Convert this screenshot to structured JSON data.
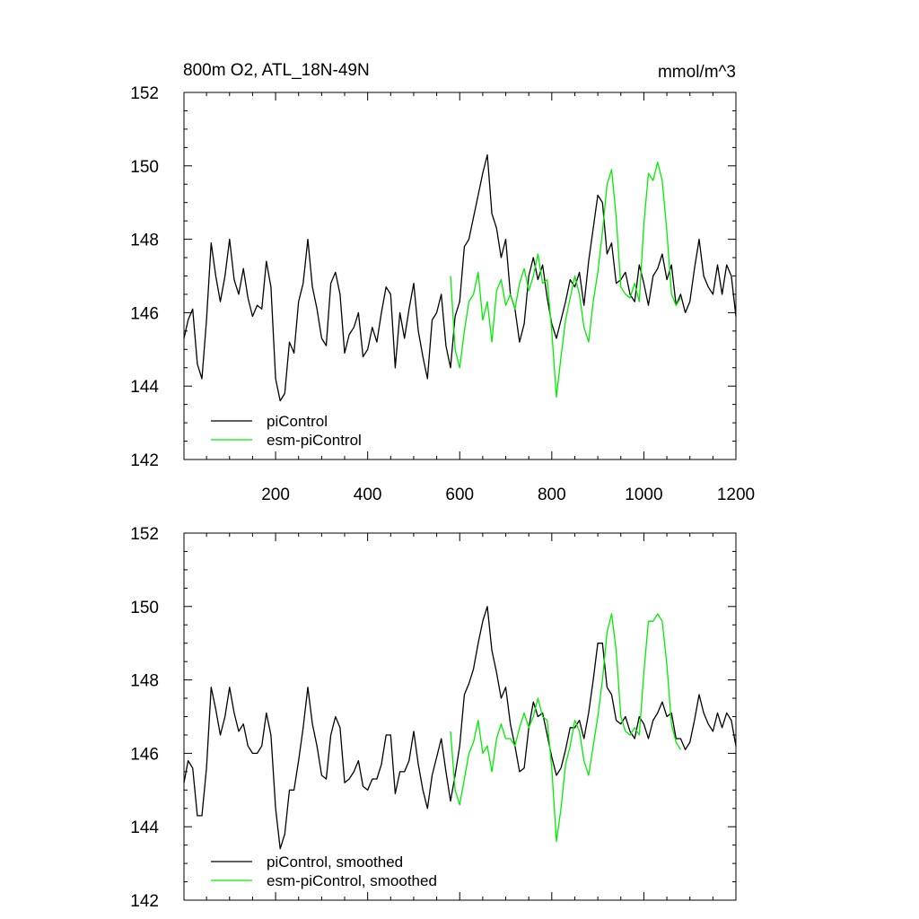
{
  "colors": {
    "background": "#ffffff",
    "axes": "#000000",
    "pi": "#000000",
    "esm": "#00ee00"
  },
  "chart_data": [
    {
      "type": "line",
      "title": "800m O2, ATL_18N-49N",
      "units": "mmol/m^3",
      "xlim": [
        1,
        1200
      ],
      "ylim": [
        142,
        152
      ],
      "x_ticks": [
        200,
        400,
        600,
        800,
        1000,
        1200
      ],
      "x_tick_labels": [
        "200",
        "400",
        "600",
        "800",
        "1000",
        "1200"
      ],
      "y_ticks": [
        142,
        144,
        146,
        148,
        150,
        152
      ],
      "y_tick_labels": [
        "142",
        "144",
        "146",
        "148",
        "150",
        "152"
      ],
      "series": [
        {
          "name": "piControl",
          "color": "#000000",
          "x": [
            1,
            10,
            20,
            30,
            40,
            50,
            60,
            70,
            80,
            90,
            100,
            110,
            120,
            130,
            140,
            150,
            160,
            170,
            180,
            190,
            200,
            210,
            220,
            230,
            240,
            250,
            260,
            270,
            280,
            290,
            300,
            310,
            320,
            330,
            340,
            350,
            360,
            370,
            380,
            390,
            400,
            410,
            420,
            430,
            440,
            450,
            460,
            470,
            480,
            490,
            500,
            510,
            520,
            530,
            540,
            550,
            560,
            570,
            580,
            590,
            600,
            610,
            620,
            630,
            640,
            650,
            660,
            670,
            680,
            690,
            700,
            710,
            720,
            730,
            740,
            750,
            760,
            770,
            780,
            790,
            800,
            810,
            820,
            830,
            840,
            850,
            860,
            870,
            880,
            890,
            900,
            910,
            920,
            930,
            940,
            950,
            960,
            970,
            980,
            990,
            1000,
            1010,
            1020,
            1030,
            1040,
            1050,
            1060,
            1070,
            1080,
            1090,
            1100,
            1110,
            1120,
            1130,
            1140,
            1150,
            1160,
            1170,
            1180,
            1190,
            1200
          ],
          "values": [
            145.3,
            145.8,
            146.1,
            144.6,
            144.2,
            145.8,
            147.9,
            147.0,
            146.3,
            147.0,
            148.0,
            146.9,
            146.5,
            147.2,
            146.4,
            145.9,
            146.2,
            146.1,
            147.4,
            146.7,
            144.2,
            143.6,
            143.8,
            145.2,
            144.9,
            146.3,
            146.8,
            148.0,
            146.7,
            146.1,
            145.3,
            145.1,
            146.8,
            147.1,
            146.5,
            144.9,
            145.4,
            145.6,
            146.0,
            144.8,
            145.0,
            145.6,
            145.2,
            146.0,
            146.7,
            146.5,
            144.5,
            146.0,
            145.3,
            146.1,
            146.8,
            145.5,
            144.8,
            144.2,
            145.8,
            146.0,
            146.5,
            145.1,
            144.5,
            145.9,
            146.3,
            147.8,
            148.0,
            148.6,
            149.2,
            149.8,
            150.3,
            148.7,
            148.3,
            147.5,
            148.0,
            146.5,
            146.1,
            145.2,
            145.7,
            147.0,
            147.5,
            146.9,
            147.3,
            146.4,
            145.7,
            145.3,
            145.8,
            146.3,
            146.9,
            146.7,
            147.1,
            146.2,
            147.4,
            148.3,
            149.2,
            149.0,
            147.6,
            147.9,
            146.8,
            146.9,
            147.1,
            146.5,
            146.3,
            147.3,
            146.8,
            146.2,
            147.0,
            147.2,
            147.6,
            146.9,
            147.3,
            146.2,
            146.5,
            146.0,
            146.3,
            147.2,
            148.0,
            147.0,
            146.7,
            146.5,
            147.3,
            146.5,
            147.3,
            147.0,
            145.9
          ]
        },
        {
          "name": "esm-piControl",
          "color": "#00ee00",
          "x": [
            580,
            590,
            600,
            610,
            620,
            630,
            640,
            650,
            660,
            670,
            680,
            690,
            700,
            710,
            720,
            730,
            740,
            750,
            760,
            770,
            780,
            790,
            800,
            810,
            820,
            830,
            840,
            850,
            860,
            870,
            880,
            890,
            900,
            910,
            920,
            930,
            940,
            950,
            960,
            970,
            980,
            990,
            1000,
            1010,
            1020,
            1030,
            1040,
            1050,
            1060,
            1070,
            1080
          ],
          "values": [
            147.0,
            145.0,
            144.5,
            145.5,
            146.3,
            146.5,
            147.1,
            145.8,
            146.3,
            145.2,
            146.6,
            146.9,
            146.2,
            146.5,
            146.1,
            146.8,
            147.2,
            146.6,
            147.0,
            147.6,
            146.8,
            146.9,
            145.5,
            143.7,
            144.8,
            145.8,
            146.4,
            147.0,
            146.5,
            145.6,
            145.2,
            146.3,
            147.1,
            148.2,
            149.5,
            149.9,
            148.6,
            146.7,
            146.5,
            146.4,
            146.8,
            146.3,
            148.4,
            149.8,
            149.6,
            150.1,
            149.6,
            148.2,
            146.5,
            146.2,
            146.4
          ]
        }
      ],
      "legend": [
        "piControl",
        "esm-piControl"
      ]
    },
    {
      "type": "line",
      "title": "",
      "xlim": [
        1,
        1200
      ],
      "ylim": [
        142,
        152
      ],
      "x_ticks": [
        200,
        400,
        600,
        800,
        1000,
        1200
      ],
      "x_tick_labels": [],
      "y_ticks": [
        142,
        144,
        146,
        148,
        150,
        152
      ],
      "y_tick_labels": [
        "142",
        "144",
        "146",
        "148",
        "150",
        "152"
      ],
      "series": [
        {
          "name": "piControl, smoothed",
          "color": "#000000",
          "x": [
            1,
            10,
            20,
            30,
            40,
            50,
            60,
            70,
            80,
            90,
            100,
            110,
            120,
            130,
            140,
            150,
            160,
            170,
            180,
            190,
            200,
            210,
            220,
            230,
            240,
            250,
            260,
            270,
            280,
            290,
            300,
            310,
            320,
            330,
            340,
            350,
            360,
            370,
            380,
            390,
            400,
            410,
            420,
            430,
            440,
            450,
            460,
            470,
            480,
            490,
            500,
            510,
            520,
            530,
            540,
            550,
            560,
            570,
            580,
            590,
            600,
            610,
            620,
            630,
            640,
            650,
            660,
            670,
            680,
            690,
            700,
            710,
            720,
            730,
            740,
            750,
            760,
            770,
            780,
            790,
            800,
            810,
            820,
            830,
            840,
            850,
            860,
            870,
            880,
            890,
            900,
            910,
            920,
            930,
            940,
            950,
            960,
            970,
            980,
            990,
            1000,
            1010,
            1020,
            1030,
            1040,
            1050,
            1060,
            1070,
            1080,
            1090,
            1100,
            1110,
            1120,
            1130,
            1140,
            1150,
            1160,
            1170,
            1180,
            1190,
            1200
          ],
          "values": [
            145.2,
            145.8,
            145.6,
            144.3,
            144.3,
            145.6,
            147.8,
            147.2,
            146.5,
            147.0,
            147.8,
            147.1,
            146.6,
            146.8,
            146.2,
            146.0,
            146.0,
            146.2,
            147.1,
            146.5,
            144.5,
            143.4,
            143.8,
            145.0,
            145.0,
            145.8,
            146.7,
            147.8,
            146.8,
            146.2,
            145.4,
            145.3,
            146.5,
            147.0,
            146.7,
            145.2,
            145.3,
            145.5,
            145.8,
            145.1,
            145.0,
            145.3,
            145.3,
            145.7,
            146.5,
            146.5,
            144.9,
            145.5,
            145.5,
            145.8,
            146.6,
            145.7,
            145.0,
            144.5,
            145.4,
            145.9,
            146.4,
            145.5,
            144.7,
            145.4,
            146.2,
            147.6,
            147.9,
            148.3,
            149.0,
            149.6,
            150.0,
            148.8,
            148.2,
            147.5,
            147.8,
            146.8,
            146.2,
            145.5,
            145.6,
            146.7,
            147.4,
            147.0,
            147.1,
            146.5,
            145.9,
            145.4,
            145.6,
            146.1,
            146.7,
            146.7,
            146.9,
            146.4,
            147.1,
            148.0,
            149.0,
            149.0,
            147.8,
            147.6,
            146.9,
            146.8,
            147.0,
            146.6,
            146.4,
            147.0,
            146.8,
            146.4,
            146.9,
            147.1,
            147.4,
            147.0,
            147.1,
            146.4,
            146.4,
            146.1,
            146.3,
            146.9,
            147.6,
            147.1,
            146.8,
            146.6,
            147.1,
            146.7,
            147.1,
            146.9,
            146.2
          ]
        },
        {
          "name": "esm-piControl, smoothed",
          "color": "#00ee00",
          "x": [
            580,
            590,
            600,
            610,
            620,
            630,
            640,
            650,
            660,
            670,
            680,
            690,
            700,
            710,
            720,
            730,
            740,
            750,
            760,
            770,
            780,
            790,
            800,
            810,
            820,
            830,
            840,
            850,
            860,
            870,
            880,
            890,
            900,
            910,
            920,
            930,
            940,
            950,
            960,
            970,
            980,
            990,
            1000,
            1010,
            1020,
            1030,
            1040,
            1050,
            1060,
            1070,
            1080
          ],
          "values": [
            146.6,
            145.0,
            144.6,
            145.3,
            146.0,
            146.3,
            146.9,
            146.0,
            146.2,
            145.5,
            146.4,
            146.8,
            146.4,
            146.4,
            146.2,
            146.7,
            147.1,
            146.7,
            147.0,
            147.5,
            147.0,
            146.9,
            145.6,
            143.6,
            144.5,
            145.7,
            146.2,
            146.9,
            146.6,
            145.8,
            145.4,
            146.2,
            147.0,
            148.0,
            149.3,
            149.8,
            148.8,
            147.0,
            146.6,
            146.5,
            146.7,
            146.5,
            148.2,
            149.6,
            149.6,
            149.8,
            149.6,
            148.4,
            146.8,
            146.3,
            146.1
          ]
        }
      ],
      "legend": [
        "piControl, smoothed",
        "esm-piControl, smoothed"
      ]
    }
  ]
}
